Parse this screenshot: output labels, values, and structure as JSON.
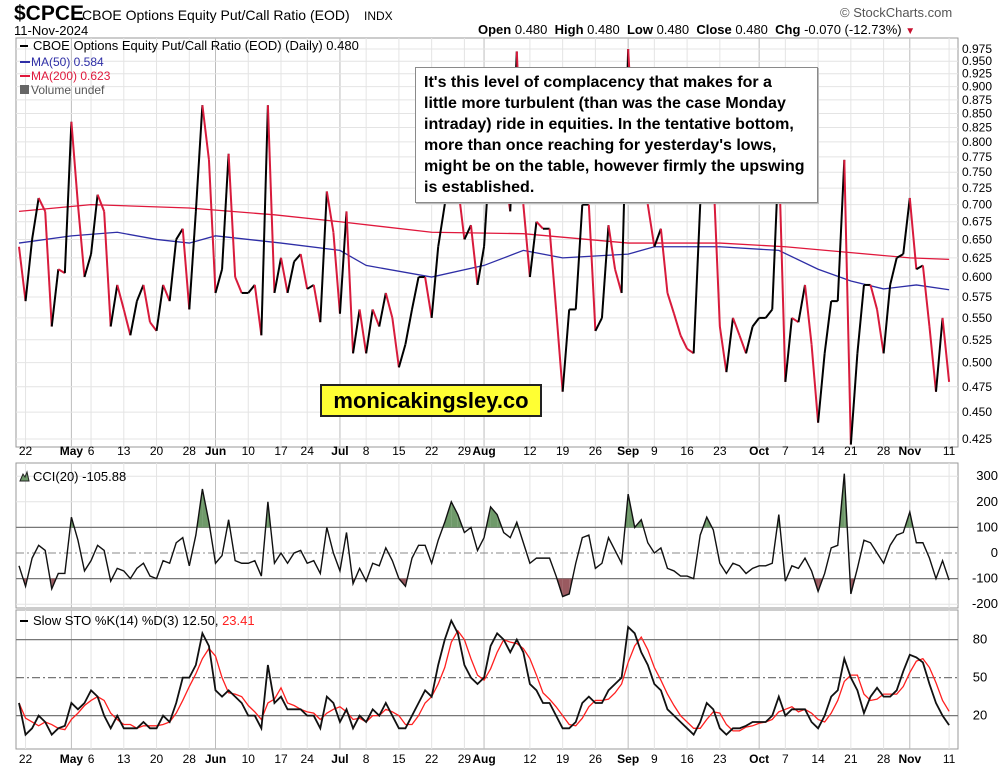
{
  "header": {
    "symbol": "$CPCE",
    "description": "CBOE Options Equity Put/Call Ratio (EOD)",
    "exchange": "INDX",
    "date": "11-Nov-2024",
    "brand": "© StockCharts.com",
    "open_label": "Open",
    "open": "0.480",
    "high_label": "High",
    "high": "0.480",
    "low_label": "Low",
    "low": "0.480",
    "close_label": "Close",
    "close": "0.480",
    "chg_label": "Chg",
    "chg": "-0.070 (-12.73%)",
    "chg_icon": "triangle-down-icon"
  },
  "annotation": "It's this level of complacency that makes for a little more turbulent (than was the case Monday intraday) ride in equities. In the tentative bottom, more than once reaching for yesterday's lows, might be on the table, however firmly the upswing is established.",
  "watermark": "monicakingsley.co",
  "colors": {
    "up": "#000000",
    "down": "#d81b3c",
    "ma50": "#2e2ea6",
    "ma200": "#e0183c",
    "cci_fill_pos": "#6f9a6a",
    "cci_fill_neg": "#9a5a60",
    "pct_d": "#ff2020"
  },
  "chart_data": [
    {
      "type": "line",
      "panel": "price",
      "legend": [
        {
          "text": "CBOE Options Equity Put/Call Ratio (EOD) (Daily) 0.480",
          "color": "#000000"
        },
        {
          "text": "MA(50) 0.584",
          "color": "#2e2ea6"
        },
        {
          "text": "MA(200) 0.623",
          "color": "#e0183c"
        },
        {
          "text": "Volume undef",
          "color": "#555555"
        }
      ],
      "yscale": "log",
      "ylim": [
        0.425,
        0.975
      ],
      "yticks": [
        "0.975",
        "0.950",
        "0.925",
        "0.900",
        "0.875",
        "0.850",
        "0.825",
        "0.800",
        "0.775",
        "0.750",
        "0.725",
        "0.700",
        "0.675",
        "0.650",
        "0.625",
        "0.600",
        "0.575",
        "0.550",
        "0.525",
        "0.500",
        "0.475",
        "0.450",
        "0.425"
      ],
      "grid": true,
      "dates": [
        "2024-04-19",
        "2024-04-22",
        "2024-04-23",
        "2024-04-24",
        "2024-04-25",
        "2024-04-26",
        "2024-04-29",
        "2024-04-30",
        "2024-05-01",
        "2024-05-02",
        "2024-05-03",
        "2024-05-06",
        "2024-05-07",
        "2024-05-08",
        "2024-05-09",
        "2024-05-10",
        "2024-05-13",
        "2024-05-14",
        "2024-05-15",
        "2024-05-16",
        "2024-05-17",
        "2024-05-20",
        "2024-05-21",
        "2024-05-22",
        "2024-05-23",
        "2024-05-24",
        "2024-05-28",
        "2024-05-29",
        "2024-05-30",
        "2024-05-31",
        "2024-06-03",
        "2024-06-04",
        "2024-06-05",
        "2024-06-06",
        "2024-06-07",
        "2024-06-10",
        "2024-06-11",
        "2024-06-12",
        "2024-06-13",
        "2024-06-14",
        "2024-06-17",
        "2024-06-18",
        "2024-06-20",
        "2024-06-21",
        "2024-06-24",
        "2024-06-25",
        "2024-06-26",
        "2024-06-27",
        "2024-06-28",
        "2024-07-01",
        "2024-07-02",
        "2024-07-03",
        "2024-07-05",
        "2024-07-08",
        "2024-07-09",
        "2024-07-10",
        "2024-07-11",
        "2024-07-12",
        "2024-07-15",
        "2024-07-16",
        "2024-07-17",
        "2024-07-18",
        "2024-07-19",
        "2024-07-22",
        "2024-07-23",
        "2024-07-24",
        "2024-07-25",
        "2024-07-26",
        "2024-07-29",
        "2024-07-30",
        "2024-07-31",
        "2024-08-01",
        "2024-08-02",
        "2024-08-05",
        "2024-08-06",
        "2024-08-07",
        "2024-08-08",
        "2024-08-09",
        "2024-08-12",
        "2024-08-13",
        "2024-08-14",
        "2024-08-15",
        "2024-08-16",
        "2024-08-19",
        "2024-08-20",
        "2024-08-21",
        "2024-08-22",
        "2024-08-23",
        "2024-08-26",
        "2024-08-27",
        "2024-08-28",
        "2024-08-29",
        "2024-08-30",
        "2024-09-03",
        "2024-09-04",
        "2024-09-05",
        "2024-09-06",
        "2024-09-09",
        "2024-09-10",
        "2024-09-11",
        "2024-09-12",
        "2024-09-13",
        "2024-09-16",
        "2024-09-17",
        "2024-09-18",
        "2024-09-19",
        "2024-09-20",
        "2024-09-23",
        "2024-09-24",
        "2024-09-25",
        "2024-09-26",
        "2024-09-27",
        "2024-09-30",
        "2024-10-01",
        "2024-10-02",
        "2024-10-03",
        "2024-10-04",
        "2024-10-07",
        "2024-10-08",
        "2024-10-09",
        "2024-10-10",
        "2024-10-11",
        "2024-10-14",
        "2024-10-15",
        "2024-10-16",
        "2024-10-17",
        "2024-10-18",
        "2024-10-21",
        "2024-10-22",
        "2024-10-23",
        "2024-10-24",
        "2024-10-25",
        "2024-10-28",
        "2024-10-29",
        "2024-10-30",
        "2024-10-31",
        "2024-11-01",
        "2024-11-04",
        "2024-11-05",
        "2024-11-06",
        "2024-11-07",
        "2024-11-08",
        "2024-11-11"
      ],
      "close": [
        0.64,
        0.57,
        0.65,
        0.71,
        0.69,
        0.54,
        0.61,
        0.605,
        0.835,
        0.7,
        0.6,
        0.63,
        0.715,
        0.69,
        0.54,
        0.59,
        0.56,
        0.53,
        0.57,
        0.59,
        0.545,
        0.535,
        0.59,
        0.57,
        0.65,
        0.665,
        0.56,
        0.69,
        0.865,
        0.77,
        0.58,
        0.61,
        0.78,
        0.6,
        0.58,
        0.58,
        0.59,
        0.53,
        0.865,
        0.58,
        0.625,
        0.58,
        0.62,
        0.63,
        0.585,
        0.59,
        0.545,
        0.72,
        0.66,
        0.555,
        0.69,
        0.51,
        0.56,
        0.51,
        0.56,
        0.54,
        0.58,
        0.55,
        0.495,
        0.52,
        0.56,
        0.6,
        0.6,
        0.55,
        0.64,
        0.7,
        0.78,
        0.73,
        0.65,
        0.67,
        0.59,
        0.64,
        0.8,
        0.9,
        0.76,
        0.69,
        0.97,
        0.7,
        0.6,
        0.675,
        0.665,
        0.665,
        0.56,
        0.47,
        0.56,
        0.56,
        0.7,
        0.7,
        0.535,
        0.55,
        0.67,
        0.61,
        0.58,
        0.975,
        0.76,
        0.8,
        0.7,
        0.64,
        0.665,
        0.58,
        0.555,
        0.53,
        0.515,
        0.51,
        0.7,
        0.82,
        0.75,
        0.54,
        0.49,
        0.55,
        0.53,
        0.51,
        0.54,
        0.55,
        0.55,
        0.56,
        0.78,
        0.48,
        0.55,
        0.545,
        0.59,
        0.52,
        0.44,
        0.51,
        0.57,
        0.57,
        0.77,
        0.42,
        0.51,
        0.59,
        0.59,
        0.56,
        0.51,
        0.59,
        0.625,
        0.63,
        0.71,
        0.61,
        0.615,
        0.54,
        0.47,
        0.55,
        0.48
      ],
      "ma50": [
        [
          "2024-04-19",
          0.645
        ],
        [
          "2024-05-01",
          0.655
        ],
        [
          "2024-05-10",
          0.66
        ],
        [
          "2024-05-20",
          0.65
        ],
        [
          "2024-05-28",
          0.645
        ],
        [
          "2024-06-03",
          0.655
        ],
        [
          "2024-06-17",
          0.645
        ],
        [
          "2024-07-01",
          0.635
        ],
        [
          "2024-07-08",
          0.615
        ],
        [
          "2024-07-22",
          0.6
        ],
        [
          "2024-08-01",
          0.615
        ],
        [
          "2024-08-09",
          0.635
        ],
        [
          "2024-08-19",
          0.625
        ],
        [
          "2024-09-03",
          0.63
        ],
        [
          "2024-09-09",
          0.64
        ],
        [
          "2024-09-23",
          0.64
        ],
        [
          "2024-10-04",
          0.635
        ],
        [
          "2024-10-14",
          0.61
        ],
        [
          "2024-10-21",
          0.595
        ],
        [
          "2024-10-28",
          0.585
        ],
        [
          "2024-11-04",
          0.59
        ],
        [
          "2024-11-11",
          0.584
        ]
      ],
      "ma200": [
        [
          "2024-04-19",
          0.69
        ],
        [
          "2024-05-06",
          0.7
        ],
        [
          "2024-05-28",
          0.695
        ],
        [
          "2024-06-14",
          0.685
        ],
        [
          "2024-07-01",
          0.675
        ],
        [
          "2024-07-22",
          0.66
        ],
        [
          "2024-08-09",
          0.658
        ],
        [
          "2024-09-03",
          0.645
        ],
        [
          "2024-09-23",
          0.645
        ],
        [
          "2024-10-07",
          0.64
        ],
        [
          "2024-10-21",
          0.632
        ],
        [
          "2024-11-01",
          0.625
        ],
        [
          "2024-11-11",
          0.623
        ]
      ],
      "xticks": [
        [
          "2024-04-22",
          "22",
          false
        ],
        [
          "2024-05-01",
          "May",
          true
        ],
        [
          "2024-05-06",
          "6",
          false
        ],
        [
          "2024-05-13",
          "13",
          false
        ],
        [
          "2024-05-20",
          "20",
          false
        ],
        [
          "2024-05-28",
          "28",
          false
        ],
        [
          "2024-06-03",
          "Jun",
          true
        ],
        [
          "2024-06-10",
          "10",
          false
        ],
        [
          "2024-06-17",
          "17",
          false
        ],
        [
          "2024-06-24",
          "24",
          false
        ],
        [
          "2024-07-01",
          "Jul",
          true
        ],
        [
          "2024-07-08",
          "8",
          false
        ],
        [
          "2024-07-15",
          "15",
          false
        ],
        [
          "2024-07-22",
          "22",
          false
        ],
        [
          "2024-07-29",
          "29",
          false
        ],
        [
          "2024-08-01",
          "Aug",
          true
        ],
        [
          "2024-08-12",
          "12",
          false
        ],
        [
          "2024-08-19",
          "19",
          false
        ],
        [
          "2024-08-26",
          "26",
          false
        ],
        [
          "2024-09-03",
          "Sep",
          true
        ],
        [
          "2024-09-09",
          "9",
          false
        ],
        [
          "2024-09-16",
          "16",
          false
        ],
        [
          "2024-09-23",
          "23",
          false
        ],
        [
          "2024-10-01",
          "Oct",
          true
        ],
        [
          "2024-10-07",
          "7",
          false
        ],
        [
          "2024-10-14",
          "14",
          false
        ],
        [
          "2024-10-21",
          "21",
          false
        ],
        [
          "2024-10-28",
          "28",
          false
        ],
        [
          "2024-11-01",
          "Nov",
          true
        ],
        [
          "2024-11-11",
          "11",
          false
        ]
      ]
    },
    {
      "type": "line",
      "panel": "cci",
      "legend": "CCI(20) -105.88",
      "ylim": [
        -200,
        300
      ],
      "yticks": [
        "300",
        "200",
        "100",
        "0",
        "-100",
        "-200"
      ],
      "values": [
        -50,
        -130,
        -20,
        30,
        10,
        -140,
        -80,
        -80,
        140,
        50,
        -70,
        -30,
        30,
        10,
        -110,
        -60,
        -70,
        -100,
        -60,
        -40,
        -90,
        -100,
        -30,
        -40,
        40,
        60,
        -50,
        70,
        250,
        120,
        -40,
        -10,
        130,
        -30,
        -40,
        -40,
        -30,
        -90,
        200,
        -40,
        0,
        -40,
        0,
        10,
        -40,
        -30,
        -80,
        100,
        0,
        -70,
        80,
        -120,
        -60,
        -110,
        -40,
        -50,
        20,
        -30,
        -100,
        -130,
        -20,
        30,
        30,
        -40,
        50,
        120,
        200,
        150,
        80,
        100,
        10,
        60,
        180,
        150,
        80,
        60,
        120,
        40,
        -40,
        -20,
        -20,
        -20,
        -90,
        -170,
        -160,
        -40,
        60,
        70,
        -60,
        -40,
        60,
        10,
        -40,
        230,
        100,
        130,
        40,
        0,
        20,
        -60,
        -70,
        -90,
        -90,
        -100,
        70,
        140,
        90,
        -40,
        -80,
        -40,
        -50,
        -80,
        -60,
        -50,
        -50,
        -40,
        150,
        -110,
        -50,
        -60,
        -20,
        -70,
        -150,
        -80,
        20,
        30,
        310,
        -160,
        -60,
        50,
        40,
        0,
        -40,
        30,
        70,
        80,
        160,
        40,
        40,
        -20,
        -100,
        -30,
        -105.88
      ]
    },
    {
      "type": "line",
      "panel": "slow-stochastic",
      "legend_main": "Slow STO %K(14) %D(3) 12.50,",
      "legend_d": "23.41",
      "ylim": [
        0,
        100
      ],
      "yticks": [
        "80",
        "50",
        "20"
      ],
      "k": [
        30,
        5,
        10,
        20,
        15,
        5,
        10,
        12,
        30,
        25,
        30,
        40,
        35,
        20,
        10,
        20,
        10,
        10,
        10,
        15,
        10,
        10,
        20,
        15,
        30,
        50,
        50,
        60,
        85,
        75,
        40,
        35,
        40,
        35,
        30,
        20,
        20,
        10,
        60,
        30,
        35,
        25,
        25,
        25,
        20,
        20,
        10,
        35,
        30,
        15,
        25,
        10,
        20,
        15,
        25,
        20,
        30,
        20,
        10,
        10,
        20,
        30,
        40,
        35,
        60,
        80,
        95,
        85,
        60,
        50,
        45,
        50,
        75,
        85,
        80,
        70,
        80,
        70,
        45,
        40,
        30,
        30,
        20,
        10,
        10,
        15,
        30,
        35,
        30,
        30,
        40,
        45,
        50,
        90,
        85,
        70,
        60,
        45,
        40,
        25,
        20,
        15,
        10,
        5,
        15,
        30,
        25,
        10,
        5,
        10,
        10,
        12,
        15,
        15,
        15,
        20,
        35,
        20,
        25,
        25,
        25,
        15,
        10,
        20,
        35,
        40,
        65,
        50,
        40,
        22,
        35,
        42,
        35,
        35,
        40,
        55,
        68,
        66,
        62,
        45,
        30,
        20,
        12.5
      ],
      "d": [
        30,
        18,
        15,
        12,
        15,
        13,
        10,
        9,
        17,
        22,
        28,
        32,
        35,
        32,
        22,
        17,
        13,
        13,
        10,
        12,
        12,
        12,
        13,
        15,
        22,
        32,
        43,
        53,
        65,
        73,
        67,
        50,
        38,
        37,
        35,
        28,
        23,
        17,
        30,
        33,
        42,
        30,
        28,
        25,
        23,
        22,
        17,
        22,
        25,
        27,
        23,
        17,
        18,
        15,
        20,
        20,
        25,
        23,
        20,
        13,
        13,
        20,
        30,
        35,
        45,
        58,
        78,
        87,
        80,
        65,
        52,
        48,
        57,
        70,
        80,
        78,
        77,
        73,
        65,
        52,
        38,
        33,
        27,
        20,
        13,
        12,
        18,
        27,
        32,
        32,
        33,
        38,
        45,
        62,
        75,
        82,
        72,
        58,
        48,
        37,
        28,
        20,
        15,
        10,
        10,
        17,
        23,
        22,
        13,
        8,
        8,
        11,
        12,
        14,
        15,
        17,
        23,
        25,
        27,
        23,
        25,
        22,
        17,
        15,
        22,
        32,
        47,
        52,
        52,
        37,
        32,
        33,
        37,
        37,
        37,
        43,
        54,
        63,
        65,
        58,
        46,
        32,
        23.41
      ]
    }
  ]
}
